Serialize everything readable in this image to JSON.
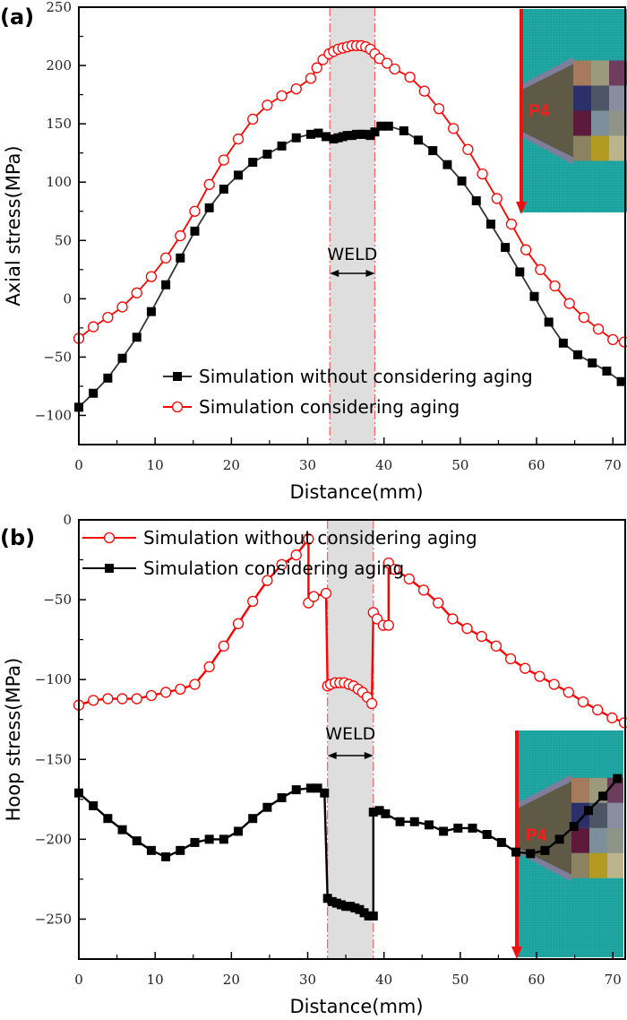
{
  "chart_data": [
    {
      "panel": "(a)",
      "type": "line",
      "title": "",
      "xlabel": "Distance(mm)",
      "ylabel": "Axial stress(MPa)",
      "xlim": [
        0,
        71.5
      ],
      "ylim": [
        -125,
        250
      ],
      "xticks": [
        0,
        10,
        20,
        30,
        40,
        50,
        60,
        70
      ],
      "xtick_labels": [
        "0",
        "10",
        "20",
        "30",
        "40",
        "50",
        "60",
        "70"
      ],
      "yticks": [
        -100,
        -50,
        0,
        50,
        100,
        150,
        200,
        250
      ],
      "ytick_labels": [
        "-100",
        "-50",
        "0",
        "50",
        "100",
        "150",
        "200",
        "250"
      ],
      "grid": false,
      "legend_position": "bottom-center",
      "weld_region": [
        32.9,
        38.8
      ],
      "weld_label": "WELD",
      "inset_label": "P4",
      "series": [
        {
          "name": "Simulation without considering aging",
          "color": "#000000",
          "line_color": "#333333",
          "marker": "filled-square",
          "x": [
            0,
            1.9,
            3.8,
            5.7,
            7.6,
            9.5,
            11.4,
            13.3,
            15.2,
            17.1,
            19.0,
            20.9,
            22.8,
            24.7,
            26.6,
            28.5,
            30.4,
            31.4,
            32.4,
            33.4,
            34.0,
            34.6,
            35.2,
            35.8,
            36.4,
            37.0,
            37.6,
            38.2,
            38.8,
            39.6,
            40.6,
            42.6,
            44.5,
            46.4,
            48.3,
            50.2,
            52.1,
            54.0,
            55.9,
            57.8,
            59.7,
            61.6,
            63.5,
            65.4,
            67.3,
            69.2,
            71.1
          ],
          "y": [
            -93,
            -81,
            -68,
            -51,
            -33,
            -11,
            12,
            35,
            58,
            78,
            94,
            106,
            117,
            124,
            131,
            138,
            141,
            142,
            139,
            137,
            138,
            139,
            140,
            140,
            141,
            141,
            141,
            140,
            143,
            148,
            148,
            144,
            136,
            127,
            115,
            101,
            84,
            64,
            44,
            23,
            2,
            -20,
            -38,
            -48,
            -55,
            -62,
            -71
          ]
        },
        {
          "name": "Simulation considering aging",
          "color": "#ff0000",
          "line_color": "#ff0000",
          "marker": "open-circle",
          "x": [
            0,
            1.9,
            3.8,
            5.7,
            7.6,
            9.5,
            11.4,
            13.3,
            15.2,
            17.1,
            19.0,
            20.9,
            22.8,
            24.7,
            26.6,
            28.5,
            30.4,
            31.2,
            32.0,
            32.8,
            33.4,
            34.0,
            34.6,
            35.2,
            35.8,
            36.4,
            37.0,
            37.6,
            38.2,
            38.8,
            39.4,
            40.4,
            41.4,
            43.4,
            45.3,
            47.2,
            49.1,
            51.0,
            52.9,
            54.8,
            56.7,
            58.6,
            60.5,
            62.4,
            64.3,
            66.2,
            68.1,
            70.0,
            71.5
          ],
          "y": [
            -34,
            -24,
            -16,
            -7,
            5,
            19,
            35,
            54,
            75,
            98,
            119,
            137,
            154,
            166,
            174,
            180,
            189,
            198,
            205,
            210,
            212,
            214,
            215,
            216,
            217,
            217,
            217,
            216,
            214,
            210,
            206,
            202,
            197,
            190,
            178,
            163,
            146,
            128,
            107,
            86,
            64,
            42,
            25,
            11,
            -4,
            -16,
            -26,
            -35,
            -37
          ]
        }
      ]
    },
    {
      "panel": "(b)",
      "type": "line",
      "title": "",
      "xlabel": "Distance(mm)",
      "ylabel": "Hoop stress(MPa)",
      "xlim": [
        0,
        71.5
      ],
      "ylim": [
        -275,
        0
      ],
      "xticks": [
        0,
        10,
        20,
        30,
        40,
        50,
        60,
        70
      ],
      "xtick_labels": [
        "0",
        "10",
        "20",
        "30",
        "40",
        "50",
        "60",
        "70"
      ],
      "yticks": [
        -250,
        -200,
        -150,
        -100,
        -50,
        0
      ],
      "ytick_labels": [
        "-250",
        "-200",
        "-150",
        "-100",
        "-50",
        "0"
      ],
      "grid": false,
      "legend_position": "top-left",
      "weld_region": [
        32.6,
        38.6
      ],
      "weld_label": "WELD",
      "inset_label": "P4",
      "series": [
        {
          "name": "Simulation without considering aging",
          "color": "#ff0000",
          "line_color": "#ff0000",
          "marker": "open-circle",
          "x": [
            0,
            1.9,
            3.8,
            5.7,
            7.6,
            9.5,
            11.4,
            13.3,
            15.2,
            17.1,
            19.0,
            20.9,
            22.8,
            24.7,
            26.6,
            28.5,
            30.1,
            30.1,
            30.8,
            32.4,
            32.6,
            33.0,
            33.6,
            34.2,
            34.8,
            35.4,
            36.0,
            36.6,
            37.2,
            37.8,
            38.4,
            38.6,
            39.1,
            39.9,
            40.6,
            40.6,
            41.4,
            43.3,
            45.2,
            47.1,
            49.0,
            50.9,
            52.8,
            54.7,
            56.6,
            58.5,
            60.4,
            62.3,
            64.2,
            66.1,
            68.0,
            69.9,
            71.5
          ],
          "y": [
            -116,
            -113,
            -112,
            -112,
            -112,
            -110,
            -108,
            -106,
            -103,
            -92,
            -79,
            -65,
            -51,
            -38,
            -28,
            -22,
            -12,
            -52,
            -48,
            -46,
            -104,
            -103,
            -102,
            -102,
            -102,
            -103,
            -104,
            -106,
            -108,
            -111,
            -115,
            -58,
            -62,
            -66,
            -66,
            -27,
            -31,
            -37,
            -44,
            -52,
            -62,
            -68,
            -73,
            -79,
            -87,
            -93,
            -98,
            -103,
            -108,
            -114,
            -119,
            -124,
            -127
          ]
        },
        {
          "name": "Simulation considering aging",
          "color": "#000000",
          "line_color": "#000000",
          "marker": "filled-square",
          "x": [
            0,
            1.9,
            3.8,
            5.7,
            7.6,
            9.5,
            11.4,
            13.3,
            15.2,
            17.1,
            19.0,
            20.9,
            22.8,
            24.7,
            26.6,
            28.5,
            30.4,
            31.3,
            32.2,
            32.6,
            33.2,
            33.8,
            34.4,
            35.0,
            35.6,
            36.2,
            36.8,
            37.4,
            38.0,
            38.6,
            38.6,
            39.4,
            40.2,
            42.1,
            44.0,
            45.9,
            47.8,
            49.7,
            51.6,
            53.5,
            55.4,
            57.3,
            59.2,
            61.1,
            63.0,
            64.9,
            66.8,
            68.7,
            70.6
          ],
          "y": [
            -171,
            -179,
            -187,
            -194,
            -201,
            -207,
            -211,
            -207,
            -202,
            -200,
            -200,
            -195,
            -187,
            -180,
            -174,
            -169,
            -168,
            -168,
            -171,
            -237,
            -239,
            -240,
            -241,
            -242,
            -242,
            -243,
            -244,
            -246,
            -248,
            -248,
            -183,
            -182,
            -184,
            -189,
            -189,
            -191,
            -195,
            -193,
            -193,
            -197,
            -202,
            -208,
            -209,
            -207,
            -200,
            -192,
            -182,
            -173,
            -162
          ]
        }
      ]
    }
  ]
}
